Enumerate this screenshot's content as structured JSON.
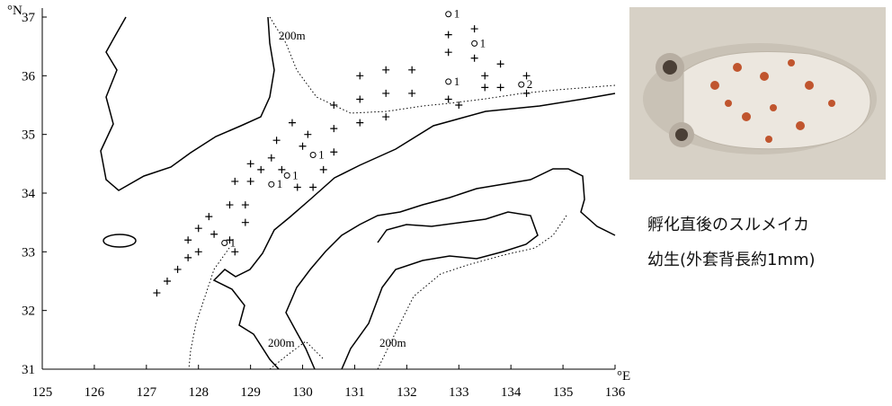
{
  "chart_data": {
    "type": "map",
    "xlabel": "°E",
    "ylabel": "°N",
    "xlim": [
      125,
      136
    ],
    "ylim": [
      31,
      37
    ],
    "xticks": [
      125,
      126,
      127,
      128,
      129,
      130,
      131,
      132,
      133,
      134,
      135,
      136
    ],
    "yticks": [
      31,
      32,
      33,
      34,
      35,
      36,
      37
    ],
    "stations": {
      "x": [
        127.2,
        127.4,
        127.6,
        127.8,
        128.0,
        127.8,
        128.0,
        128.2,
        128.3,
        128.6,
        128.7,
        128.9,
        128.6,
        128.9,
        128.7,
        129.0,
        129.0,
        129.2,
        129.4,
        129.5,
        129.8,
        129.6,
        129.9,
        130.0,
        130.1,
        130.2,
        130.4,
        130.6,
        130.6,
        130.6,
        131.1,
        131.1,
        131.1,
        131.6,
        131.6,
        131.6,
        132.1,
        132.1,
        132.8,
        132.8,
        132.8,
        133.3,
        133.3,
        133.5,
        133.5,
        133.8,
        133.8,
        134.3,
        134.3,
        133.0
      ],
      "y": [
        32.3,
        32.5,
        32.7,
        32.9,
        33.0,
        33.2,
        33.4,
        33.6,
        33.3,
        33.2,
        33.0,
        33.5,
        33.8,
        33.8,
        34.2,
        34.2,
        34.5,
        34.4,
        34.6,
        34.9,
        35.2,
        34.4,
        34.1,
        34.8,
        35.0,
        34.1,
        34.4,
        34.7,
        35.1,
        35.5,
        35.2,
        35.6,
        36.0,
        35.3,
        35.7,
        36.1,
        35.7,
        36.1,
        36.7,
        36.4,
        35.6,
        36.8,
        36.3,
        36.0,
        35.8,
        36.2,
        35.8,
        36.0,
        35.7,
        35.5
      ]
    },
    "catches": {
      "x": [
        132.8,
        133.3,
        132.8,
        134.2,
        130.2,
        129.7,
        129.4,
        128.5
      ],
      "y": [
        37.05,
        36.55,
        35.9,
        35.85,
        34.65,
        34.3,
        34.15,
        33.15
      ],
      "values": [
        1,
        1,
        1,
        2,
        1,
        1,
        1,
        1
      ]
    },
    "annotations": [
      "200m",
      "200m",
      "200m"
    ]
  },
  "caption": [
    "孵化直後のスルメイカ",
    "幼生(外套背長約1mm)"
  ]
}
